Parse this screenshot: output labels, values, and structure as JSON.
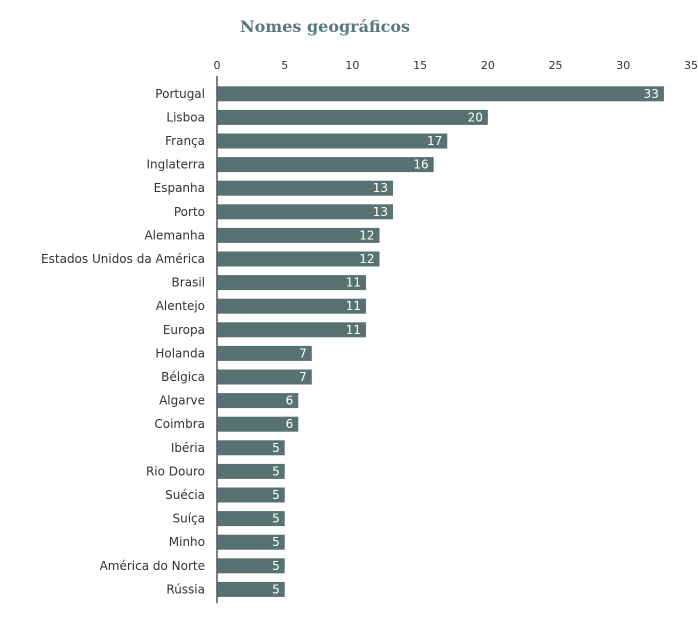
{
  "chart_data": {
    "type": "bar",
    "orientation": "horizontal",
    "title": "Nomes geográficos",
    "xlabel": "",
    "ylabel": "",
    "xlim": [
      0,
      35
    ],
    "ticks": [
      0,
      5,
      10,
      15,
      20,
      25,
      30,
      35
    ],
    "axis_position": "top",
    "grid": false,
    "categories": [
      "Portugal",
      "Lisboa",
      "França",
      "Inglaterra",
      "Espanha",
      "Porto",
      "Alemanha",
      "Estados Unidos da América",
      "Brasil",
      "Alentejo",
      "Europa",
      "Holanda",
      "Bélgica",
      "Algarve",
      "Coimbra",
      "Ibéria",
      "Rio Douro",
      "Suécia",
      "Suíça",
      "Minho",
      "América do Norte",
      "Rússia"
    ],
    "values": [
      33,
      20,
      17,
      16,
      13,
      13,
      12,
      12,
      11,
      11,
      11,
      7,
      7,
      6,
      6,
      5,
      5,
      5,
      5,
      5,
      5,
      5
    ],
    "colors": {
      "bar": "#587272",
      "title": "#5a7a78",
      "axis": "#555555"
    }
  }
}
